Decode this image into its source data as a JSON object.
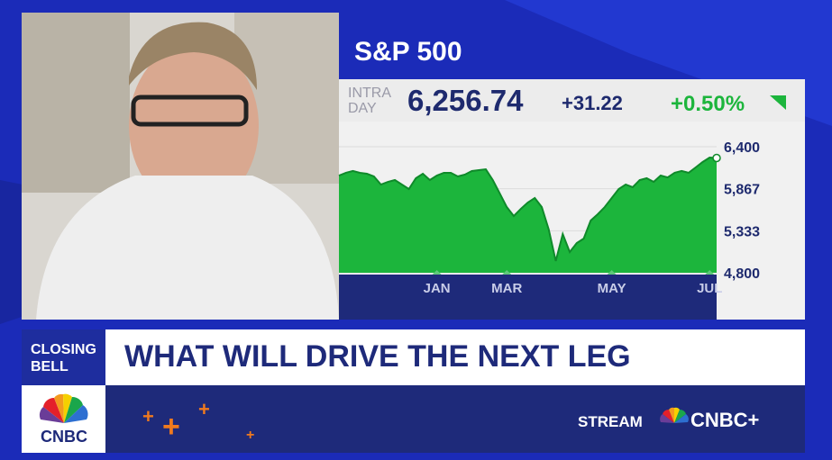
{
  "chart_data": {
    "type": "area",
    "title": "S&P 500",
    "session": [
      "INTRA",
      "DAY"
    ],
    "price": "6,256.74",
    "change": "+31.22",
    "change_pct": "+0.50%",
    "values": [
      6034,
      6069,
      6092,
      6069,
      6057,
      6023,
      5920,
      5954,
      5977,
      5920,
      5863,
      6000,
      6057,
      5977,
      6034,
      6069,
      6069,
      6023,
      6046,
      6092,
      6103,
      6114,
      5977,
      5806,
      5634,
      5520,
      5611,
      5691,
      5749,
      5634,
      5349,
      4949,
      5291,
      5063,
      5177,
      5234,
      5463,
      5543,
      5634,
      5749,
      5863,
      5920,
      5886,
      5977,
      6000,
      5954,
      6034,
      6011,
      6069,
      6092,
      6069,
      6137,
      6206,
      6263,
      6257
    ],
    "color": "#1cb53c",
    "line_color": "#0f8a2a",
    "xlim": [
      0,
      54
    ],
    "xticks": [
      {
        "value": 14,
        "label": "JAN"
      },
      {
        "value": 24,
        "label": "MAR"
      },
      {
        "value": 39,
        "label": "MAY"
      },
      {
        "value": 53,
        "label": "JUL"
      }
    ],
    "ylim": [
      4800,
      6400
    ],
    "yticks": [
      {
        "value": 4800,
        "label": "4,800"
      },
      {
        "value": 5333,
        "label": "5,333"
      },
      {
        "value": 5867,
        "label": "5,867"
      },
      {
        "value": 6400,
        "label": "6,400"
      }
    ]
  },
  "lower_third": {
    "show": [
      "CLOSING",
      "BELL"
    ],
    "headline": "WHAT WILL DRIVE THE NEXT LEG"
  },
  "branding": {
    "logo": "CNBC",
    "stream": "STREAM",
    "service": "CNBC+"
  }
}
